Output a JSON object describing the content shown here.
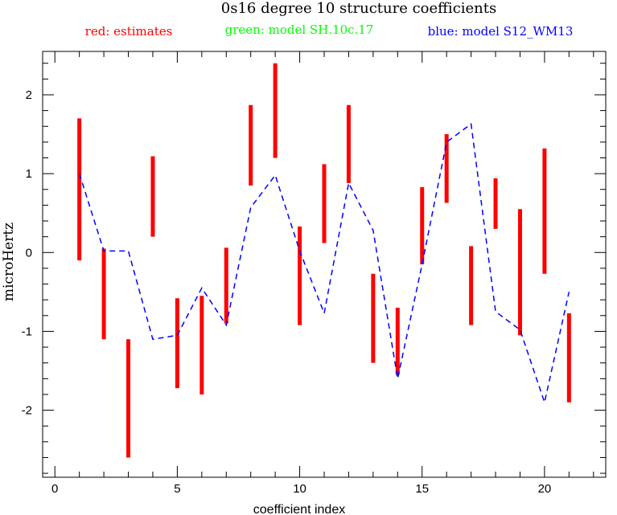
{
  "chart_data": {
    "type": "errorbar-line",
    "title": "0s16 degree 10 structure coefficients",
    "legend": [
      {
        "label": "red: estimates",
        "color": "#ff0000"
      },
      {
        "label": "green: model SH.10c.17",
        "color": "#00ff00"
      },
      {
        "label": "blue: model S12_WM13",
        "color": "#0000ff"
      }
    ],
    "xlabel": "coefficient index",
    "ylabel": "microHertz",
    "xlim": [
      -0.5,
      22.5
    ],
    "ylim": [
      -2.85,
      2.55
    ],
    "xticks_major": [
      0,
      5,
      10,
      15,
      20
    ],
    "xtick_labels": [
      "0",
      "5",
      "10",
      "15",
      "20"
    ],
    "xticks_minor_step": 1,
    "yticks_major": [
      -2,
      -1,
      0,
      1,
      2
    ],
    "ytick_labels": [
      "-2",
      "-1",
      "0",
      "1",
      "2"
    ],
    "yticks_minor_step": 0.2,
    "estimates": {
      "color": "#ff0000",
      "x": [
        1,
        2,
        3,
        4,
        5,
        6,
        7,
        8,
        9,
        10,
        11,
        12,
        13,
        14,
        15,
        16,
        17,
        18,
        19,
        20,
        21
      ],
      "low": [
        -0.1,
        -1.1,
        -2.6,
        0.2,
        -1.72,
        -1.8,
        -0.9,
        0.85,
        1.2,
        -0.92,
        0.12,
        0.88,
        -1.4,
        -1.55,
        -0.15,
        0.63,
        -0.92,
        0.3,
        -1.05,
        -0.27,
        -1.9
      ],
      "high": [
        1.7,
        0.05,
        -1.1,
        1.22,
        -0.58,
        -0.55,
        0.06,
        1.87,
        2.4,
        0.33,
        1.12,
        1.87,
        -0.27,
        -0.7,
        0.83,
        1.5,
        0.08,
        0.94,
        0.55,
        1.32,
        -0.77
      ]
    },
    "series": [
      {
        "name": "model S12_WM13",
        "color": "#0000ff",
        "style": "dashed",
        "x": [
          1,
          2,
          3,
          4,
          5,
          6,
          7,
          8,
          9,
          10,
          11,
          12,
          13,
          14,
          15,
          16,
          17,
          18,
          19,
          20,
          21
        ],
        "y": [
          1.0,
          0.02,
          0.02,
          -1.1,
          -1.05,
          -0.45,
          -0.92,
          0.57,
          0.98,
          0.02,
          -0.77,
          0.88,
          0.28,
          -1.6,
          -0.15,
          1.4,
          1.63,
          -0.75,
          -0.98,
          -1.9,
          -0.5
        ]
      }
    ]
  }
}
